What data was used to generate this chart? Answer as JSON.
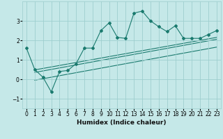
{
  "xlabel": "Humidex (Indice chaleur)",
  "ylabel": "",
  "background_color": "#c5e8e8",
  "grid_color": "#9ecece",
  "line_color": "#1a7a6e",
  "xlim": [
    -0.5,
    23.5
  ],
  "ylim": [
    -1.5,
    4.0
  ],
  "yticks": [
    -1,
    0,
    1,
    2,
    3
  ],
  "xticks": [
    0,
    1,
    2,
    3,
    4,
    5,
    6,
    7,
    8,
    9,
    10,
    11,
    12,
    13,
    14,
    15,
    16,
    17,
    18,
    19,
    20,
    21,
    22,
    23
  ],
  "data_x": [
    0,
    1,
    2,
    3,
    4,
    5,
    6,
    7,
    8,
    9,
    10,
    11,
    12,
    13,
    14,
    15,
    16,
    17,
    18,
    19,
    20,
    21,
    22,
    23
  ],
  "data_y": [
    1.6,
    0.5,
    0.1,
    -0.65,
    0.4,
    0.45,
    0.8,
    1.6,
    1.6,
    2.5,
    2.9,
    2.15,
    2.1,
    3.4,
    3.5,
    3.0,
    2.7,
    2.45,
    2.75,
    2.1,
    2.1,
    2.1,
    2.3,
    2.5
  ],
  "trend_lines": [
    {
      "x0": 1.0,
      "y0": 0.48,
      "x1": 23.0,
      "y1": 2.15
    },
    {
      "x0": 1.0,
      "y0": 0.35,
      "x1": 23.0,
      "y1": 2.05
    },
    {
      "x0": 1.0,
      "y0": -0.05,
      "x1": 23.0,
      "y1": 1.65
    }
  ]
}
